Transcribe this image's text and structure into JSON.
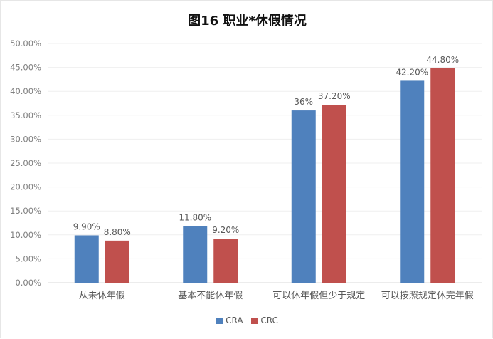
{
  "chart_data": {
    "type": "bar",
    "title": "图16 职业*休假情况",
    "categories": [
      "从未休年假",
      "基本不能休年假",
      "可以休年假但少于规定",
      "可以按照规定休完年假"
    ],
    "series": [
      {
        "name": "CRA",
        "values": [
          9.9,
          11.8,
          36,
          42.2
        ],
        "labels": [
          "9.90%",
          "11.80%",
          "36%",
          "42.20%"
        ],
        "color": "#4f81bd"
      },
      {
        "name": "CRC",
        "values": [
          8.8,
          9.2,
          37.2,
          44.8
        ],
        "labels": [
          "8.80%",
          "9.20%",
          "37.20%",
          "44.80%"
        ],
        "color": "#c0504d"
      }
    ],
    "ylim": [
      0,
      50
    ],
    "yticks": [
      "0.00%",
      "5.00%",
      "10.00%",
      "15.00%",
      "20.00%",
      "25.00%",
      "30.00%",
      "35.00%",
      "40.00%",
      "45.00%",
      "50.00%"
    ],
    "grid": true,
    "legend": "bottom"
  }
}
